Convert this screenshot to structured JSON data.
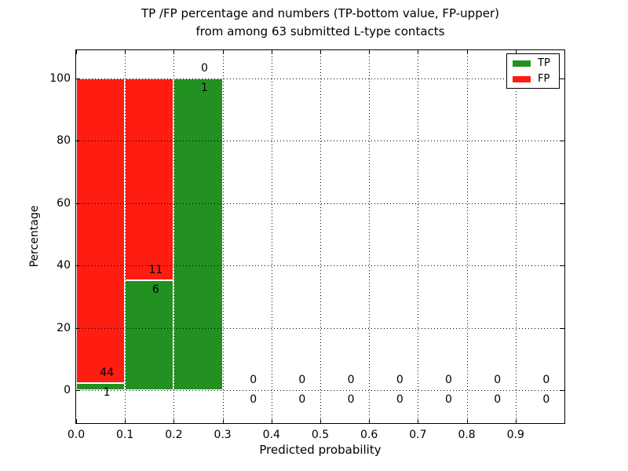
{
  "title": {
    "line1": "TP /FP percentage and numbers (TP-bottom value, FP-upper)",
    "line2": "from among 63 submitted L-type contacts"
  },
  "legend": {
    "items": [
      {
        "label": "TP",
        "color": "#229121"
      },
      {
        "label": "FP",
        "color": "#ff1d12"
      }
    ]
  },
  "chart_data": {
    "type": "bar",
    "stacked": true,
    "title": "TP /FP percentage and numbers (TP-bottom value, FP-upper) from among 63 submitted L-type contacts",
    "xlabel": "Predicted probability",
    "ylabel": "Percentage",
    "total_contacts": 63,
    "xlim": [
      0.0,
      1.0
    ],
    "ylim": [
      -10.8,
      109.0
    ],
    "grid": "dotted",
    "legend_position": "upper right",
    "x_ticks": [
      0.0,
      0.1,
      0.2,
      0.3,
      0.4,
      0.5,
      0.6,
      0.7,
      0.8,
      0.9
    ],
    "x_tick_labels": [
      "0.0",
      "0.1",
      "0.2",
      "0.3",
      "0.4",
      "0.5",
      "0.6",
      "0.7",
      "0.8",
      "0.9"
    ],
    "y_ticks": [
      0,
      20,
      40,
      60,
      80,
      100
    ],
    "y_tick_labels": [
      "0",
      "20",
      "40",
      "60",
      "80",
      "100"
    ],
    "series": [
      {
        "name": "TP",
        "color": "#229121"
      },
      {
        "name": "FP",
        "color": "#ff1d12"
      }
    ],
    "bins": [
      {
        "range": [
          0.0,
          0.1
        ],
        "tp": 1,
        "fp": 44,
        "tp_pct": 2.22,
        "fp_pct": 97.78
      },
      {
        "range": [
          0.1,
          0.2
        ],
        "tp": 6,
        "fp": 11,
        "tp_pct": 35.29,
        "fp_pct": 64.71
      },
      {
        "range": [
          0.2,
          0.3
        ],
        "tp": 1,
        "fp": 0,
        "tp_pct": 100.0,
        "fp_pct": 0.0
      },
      {
        "range": [
          0.3,
          0.4
        ],
        "tp": 0,
        "fp": 0,
        "tp_pct": 0.0,
        "fp_pct": 0.0
      },
      {
        "range": [
          0.4,
          0.5
        ],
        "tp": 0,
        "fp": 0,
        "tp_pct": 0.0,
        "fp_pct": 0.0
      },
      {
        "range": [
          0.5,
          0.6
        ],
        "tp": 0,
        "fp": 0,
        "tp_pct": 0.0,
        "fp_pct": 0.0
      },
      {
        "range": [
          0.6,
          0.7
        ],
        "tp": 0,
        "fp": 0,
        "tp_pct": 0.0,
        "fp_pct": 0.0
      },
      {
        "range": [
          0.7,
          0.8
        ],
        "tp": 0,
        "fp": 0,
        "tp_pct": 0.0,
        "fp_pct": 0.0
      },
      {
        "range": [
          0.8,
          0.9
        ],
        "tp": 0,
        "fp": 0,
        "tp_pct": 0.0,
        "fp_pct": 0.0
      },
      {
        "range": [
          0.9,
          1.0
        ],
        "tp": 0,
        "fp": 0,
        "tp_pct": 0.0,
        "fp_pct": 0.0
      }
    ]
  }
}
